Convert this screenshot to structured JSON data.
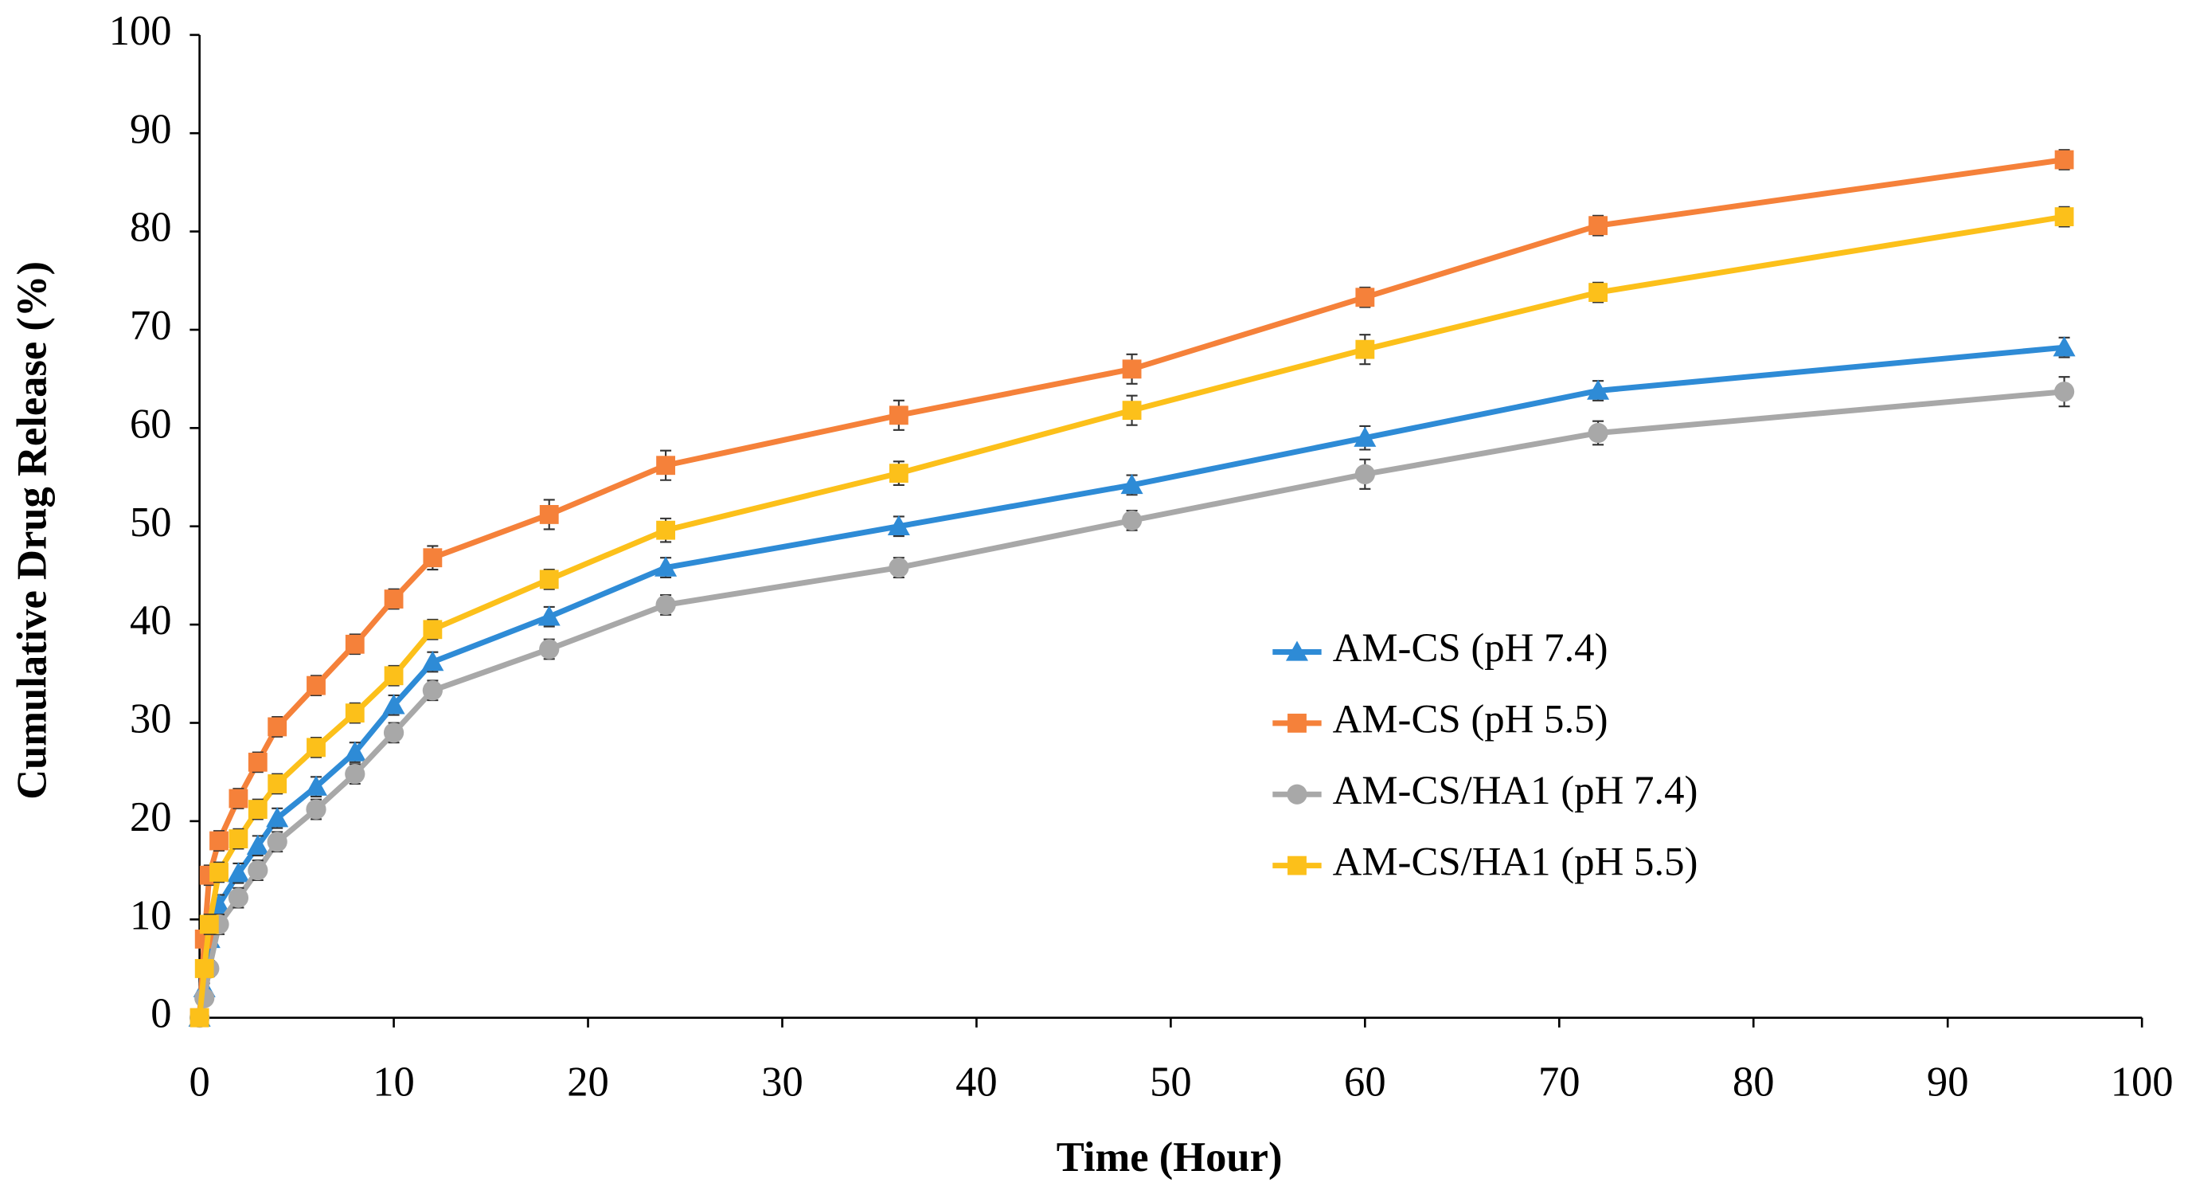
{
  "chart_data": {
    "type": "line",
    "x_label": "Time (Hour)",
    "y_label": "Cumulative Drug Release (%)",
    "x": [
      0,
      0.25,
      0.5,
      1,
      2,
      3,
      4,
      6,
      8,
      10,
      12,
      18,
      24,
      36,
      48,
      60,
      72,
      96
    ],
    "series": [
      {
        "name": "AM-CS (pH 7.4)",
        "color": "#2e8bd6",
        "marker": "triangle",
        "values": [
          0,
          3,
          8,
          11.5,
          14.7,
          17.5,
          20.3,
          23.5,
          27,
          31.8,
          36.2,
          40.8,
          45.8,
          50,
          54.2,
          59,
          63.8,
          68.2
        ],
        "errors": [
          0.5,
          0.5,
          0.8,
          1,
          1,
          1,
          1,
          1,
          1,
          1,
          1,
          1,
          1,
          1,
          1,
          1.2,
          1,
          1
        ]
      },
      {
        "name": "AM-CS (pH 5.5)",
        "color": "#f5813a",
        "marker": "square",
        "values": [
          0,
          8,
          14.5,
          18,
          22.3,
          26,
          29.6,
          33.8,
          38,
          42.6,
          46.8,
          51.2,
          56.2,
          61.3,
          66,
          73.3,
          80.6,
          87.3
        ],
        "errors": [
          0.5,
          0.8,
          1,
          1,
          1,
          1,
          1,
          1,
          1,
          1,
          1.2,
          1.5,
          1.5,
          1.5,
          1.5,
          1,
          1,
          1
        ]
      },
      {
        "name": "AM-CS/HA1 (pH 7.4)",
        "color": "#a8a8a8",
        "marker": "circle",
        "values": [
          0,
          2,
          5,
          9.5,
          12.2,
          15,
          17.9,
          21.2,
          24.8,
          29,
          33.3,
          37.5,
          42,
          45.8,
          50.6,
          55.3,
          59.5,
          63.7
        ],
        "errors": [
          0.5,
          0.5,
          0.8,
          1,
          1,
          1,
          1,
          1,
          1,
          1,
          1,
          1,
          1,
          1,
          1,
          1.5,
          1.2,
          1.5
        ]
      },
      {
        "name": "AM-CS/HA1 (pH 5.5)",
        "color": "#fcc01a",
        "marker": "square",
        "values": [
          0,
          5,
          9.5,
          14.8,
          18.2,
          21.2,
          23.8,
          27.5,
          31,
          34.8,
          39.5,
          44.6,
          49.6,
          55.4,
          61.8,
          68,
          73.8,
          81.5
        ],
        "errors": [
          0.5,
          0.8,
          1,
          1,
          1,
          1,
          1,
          1,
          1,
          1,
          1,
          1,
          1.2,
          1.2,
          1.5,
          1.5,
          1,
          1
        ]
      }
    ],
    "xlim": [
      0,
      100
    ],
    "xticks": [
      0,
      10,
      20,
      30,
      40,
      50,
      60,
      70,
      80,
      90,
      100
    ],
    "ylim": [
      0,
      100
    ],
    "yticks": [
      0,
      10,
      20,
      30,
      40,
      50,
      60,
      70,
      80,
      90,
      100
    ],
    "grid": false,
    "legend": "center-right"
  }
}
